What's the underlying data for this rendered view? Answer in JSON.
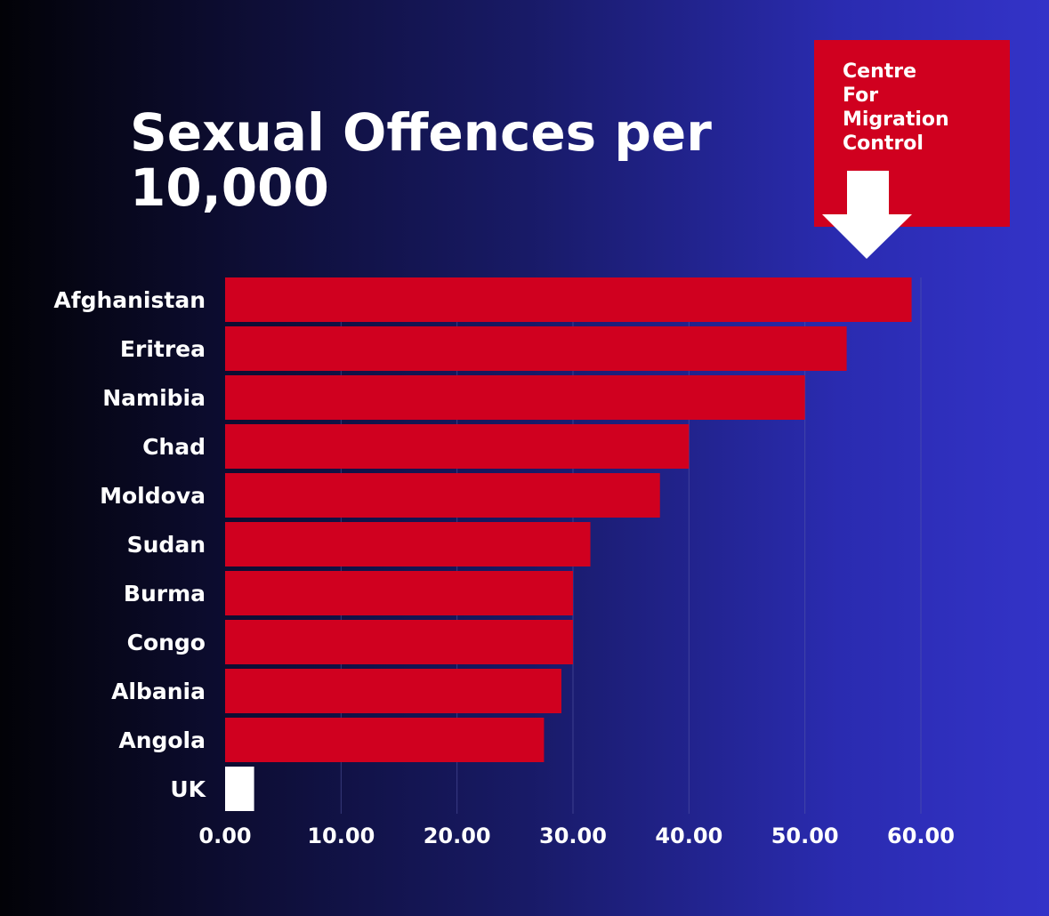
{
  "colors": {
    "bar": "#d0001f",
    "highlight_bar": "#ffffff",
    "logo_bg": "#d0001f",
    "gridline": "#5a5ca8",
    "text": "#ffffff"
  },
  "logo": {
    "text": "Centre\nFor\nMigration\nControl",
    "icon": "arrow-down-icon"
  },
  "chart_data": {
    "type": "bar",
    "orientation": "horizontal",
    "title": "Sexual Offences per 10,000",
    "categories": [
      "Afghanistan",
      "Eritrea",
      "Namibia",
      "Chad",
      "Moldova",
      "Sudan",
      "Burma",
      "Congo",
      "Albania",
      "Angola",
      "UK"
    ],
    "values": [
      59.2,
      53.6,
      50.0,
      40.0,
      37.5,
      31.5,
      30.0,
      30.0,
      29.0,
      27.5,
      2.5
    ],
    "highlight": "UK",
    "xlim": [
      0,
      60
    ],
    "xticks": [
      "0.00",
      "10.00",
      "20.00",
      "30.00",
      "40.00",
      "50.00",
      "60.00"
    ],
    "xtick_values": [
      0,
      10,
      20,
      30,
      40,
      50,
      60
    ],
    "xlabel": "",
    "ylabel": "",
    "grid": true,
    "legend": "none"
  }
}
